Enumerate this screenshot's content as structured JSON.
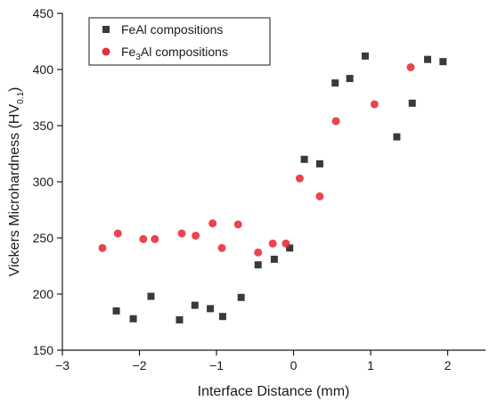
{
  "chart_data": {
    "type": "scatter",
    "xlabel": "Interface Distance (mm)",
    "ylabel": {
      "main": "Vickers Microhardness (HV",
      "subscript": "0.1",
      "close": ")"
    },
    "xlim": [
      -3,
      2.5
    ],
    "ylim": [
      150,
      450
    ],
    "xticks": [
      -3,
      -2,
      -1,
      0,
      1,
      2
    ],
    "yticks": [
      150,
      200,
      250,
      300,
      350,
      400,
      450
    ],
    "grid": false,
    "legend_position": "top-left",
    "series": [
      {
        "name": "FeAl compositions",
        "marker": "square",
        "color": "#3a3a3a",
        "points": [
          [
            -2.3,
            185
          ],
          [
            -2.08,
            178
          ],
          [
            -1.85,
            198
          ],
          [
            -1.48,
            177
          ],
          [
            -1.28,
            190
          ],
          [
            -1.08,
            187
          ],
          [
            -0.92,
            180
          ],
          [
            -0.68,
            197
          ],
          [
            -0.46,
            226
          ],
          [
            -0.25,
            231
          ],
          [
            -0.05,
            241
          ],
          [
            0.14,
            320
          ],
          [
            0.34,
            316
          ],
          [
            0.54,
            388
          ],
          [
            0.73,
            392
          ],
          [
            0.93,
            412
          ],
          [
            1.34,
            340
          ],
          [
            1.54,
            370
          ],
          [
            1.74,
            409
          ],
          [
            1.94,
            407
          ]
        ]
      },
      {
        "name_parts": [
          "Fe",
          "3",
          "Al compositions"
        ],
        "marker": "circle",
        "color": "#e8303a",
        "points": [
          [
            -2.48,
            241
          ],
          [
            -2.28,
            254
          ],
          [
            -1.95,
            249
          ],
          [
            -1.8,
            249
          ],
          [
            -1.45,
            254
          ],
          [
            -1.27,
            252
          ],
          [
            -1.05,
            263
          ],
          [
            -0.93,
            241
          ],
          [
            -0.72,
            262
          ],
          [
            -0.46,
            237
          ],
          [
            -0.27,
            245
          ],
          [
            -0.1,
            245
          ],
          [
            0.08,
            303
          ],
          [
            0.34,
            287
          ],
          [
            0.55,
            354
          ],
          [
            1.05,
            369
          ],
          [
            1.52,
            402
          ]
        ]
      }
    ]
  }
}
